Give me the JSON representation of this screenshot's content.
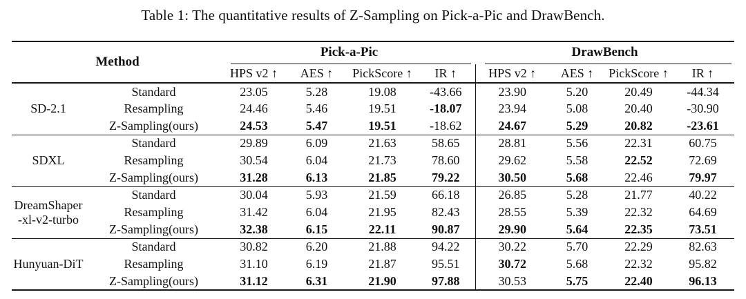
{
  "page": {
    "caption": "Table 1: The quantitative results of Z-Sampling on Pick-a-Pic and DrawBench."
  },
  "table": {
    "method_header": "Method",
    "groups": [
      {
        "label": "Pick-a-Pic",
        "columns": [
          "HPS v2 ↑",
          "AES ↑",
          "PickScore ↑",
          "IR ↑"
        ]
      },
      {
        "label": "DrawBench",
        "columns": [
          "HPS v2 ↑",
          "AES ↑",
          "PickScore ↑",
          "IR ↑"
        ]
      }
    ],
    "blocks": [
      {
        "model_lines": [
          "SD-2.1"
        ],
        "rows": [
          {
            "variant": "Standard",
            "values": [
              "23.05",
              "5.28",
              "19.08",
              "-43.66",
              "23.90",
              "5.20",
              "20.49",
              "-44.34"
            ],
            "bold": [
              false,
              false,
              false,
              false,
              false,
              false,
              false,
              false
            ]
          },
          {
            "variant": "Resampling",
            "values": [
              "24.46",
              "5.46",
              "19.51",
              "-18.07",
              "23.94",
              "5.08",
              "20.40",
              "-30.90"
            ],
            "bold": [
              false,
              false,
              false,
              true,
              false,
              false,
              false,
              false
            ]
          },
          {
            "variant": "Z-Sampling(ours)",
            "values": [
              "24.53",
              "5.47",
              "19.51",
              "-18.62",
              "24.67",
              "5.29",
              "20.82",
              "-23.61"
            ],
            "bold": [
              true,
              true,
              true,
              false,
              true,
              true,
              true,
              true
            ]
          }
        ]
      },
      {
        "model_lines": [
          "SDXL"
        ],
        "rows": [
          {
            "variant": "Standard",
            "values": [
              "29.89",
              "6.09",
              "21.63",
              "58.65",
              "28.81",
              "5.56",
              "22.31",
              "60.75"
            ],
            "bold": [
              false,
              false,
              false,
              false,
              false,
              false,
              false,
              false
            ]
          },
          {
            "variant": "Resampling",
            "values": [
              "30.54",
              "6.04",
              "21.73",
              "78.60",
              "29.62",
              "5.58",
              "22.52",
              "72.69"
            ],
            "bold": [
              false,
              false,
              false,
              false,
              false,
              false,
              true,
              false
            ]
          },
          {
            "variant": "Z-Sampling(ours)",
            "values": [
              "31.28",
              "6.13",
              "21.85",
              "79.22",
              "30.50",
              "5.68",
              "22.46",
              "79.97"
            ],
            "bold": [
              true,
              true,
              true,
              true,
              true,
              true,
              false,
              true
            ]
          }
        ]
      },
      {
        "model_lines": [
          "DreamShaper",
          "-xl-v2-turbo"
        ],
        "rows": [
          {
            "variant": "Standard",
            "values": [
              "30.04",
              "5.93",
              "21.59",
              "66.18",
              "26.85",
              "5.28",
              "21.77",
              "40.22"
            ],
            "bold": [
              false,
              false,
              false,
              false,
              false,
              false,
              false,
              false
            ]
          },
          {
            "variant": "Resampling",
            "values": [
              "31.42",
              "6.04",
              "21.95",
              "82.43",
              "28.55",
              "5.39",
              "22.32",
              "64.69"
            ],
            "bold": [
              false,
              false,
              false,
              false,
              false,
              false,
              false,
              false
            ]
          },
          {
            "variant": "Z-Sampling(ours)",
            "values": [
              "32.38",
              "6.15",
              "22.11",
              "90.87",
              "29.90",
              "5.64",
              "22.35",
              "73.51"
            ],
            "bold": [
              true,
              true,
              true,
              true,
              true,
              true,
              true,
              true
            ]
          }
        ]
      },
      {
        "model_lines": [
          "Hunyuan-DiT"
        ],
        "rows": [
          {
            "variant": "Standard",
            "values": [
              "30.82",
              "6.20",
              "21.88",
              "94.22",
              "30.22",
              "5.70",
              "22.29",
              "82.63"
            ],
            "bold": [
              false,
              false,
              false,
              false,
              false,
              false,
              false,
              false
            ]
          },
          {
            "variant": "Resampling",
            "values": [
              "31.10",
              "6.19",
              "21.87",
              "95.51",
              "30.72",
              "5.68",
              "22.32",
              "95.82"
            ],
            "bold": [
              false,
              false,
              false,
              false,
              true,
              false,
              false,
              false
            ]
          },
          {
            "variant": "Z-Sampling(ours)",
            "values": [
              "31.12",
              "6.31",
              "21.90",
              "97.88",
              "30.53",
              "5.75",
              "22.40",
              "96.13"
            ],
            "bold": [
              true,
              true,
              true,
              true,
              false,
              true,
              true,
              true
            ]
          }
        ]
      }
    ]
  }
}
